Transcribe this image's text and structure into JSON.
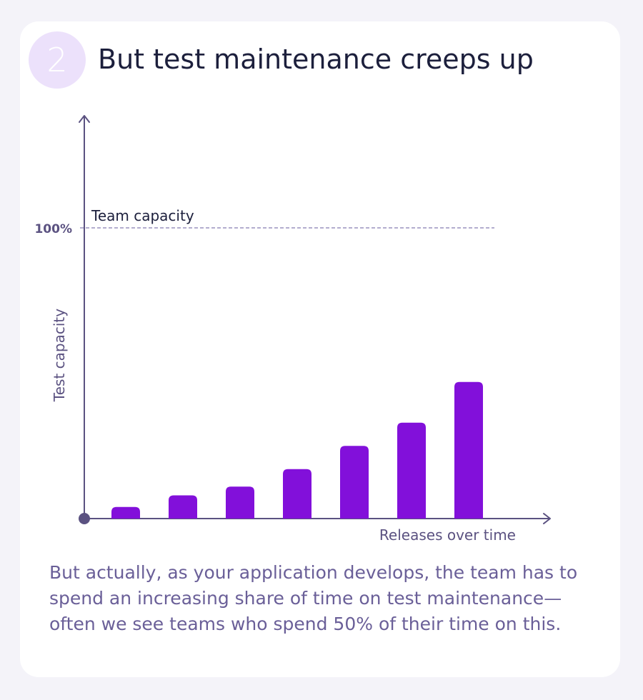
{
  "badge": {
    "number": "2"
  },
  "header": {
    "title": "But test maintenance creeps up"
  },
  "colors": {
    "bar": "#8210da",
    "axis": "#5b5281",
    "reference_line": "#9a92bd",
    "badge_bg": "#ece1fb",
    "title": "#1c1f3c",
    "caption": "#6a5f98"
  },
  "chart_data": {
    "type": "bar",
    "title": "",
    "xlabel": "Releases over time",
    "ylabel": "Test capacity",
    "categories": [
      "",
      "",
      "",
      "",
      "",
      "",
      ""
    ],
    "values": [
      4,
      8,
      11,
      17,
      25,
      33,
      47
    ],
    "ylim": [
      0,
      100
    ],
    "y_tick_labels": [
      "100%"
    ],
    "reference_line": {
      "value": 100,
      "label": "Team capacity"
    },
    "grid": false,
    "legend": "none"
  },
  "caption": {
    "text": "But actually, as your application develops, the team has to spend an increasing share of time on test maintenance—often we see teams who spend 50% of their time on this."
  }
}
